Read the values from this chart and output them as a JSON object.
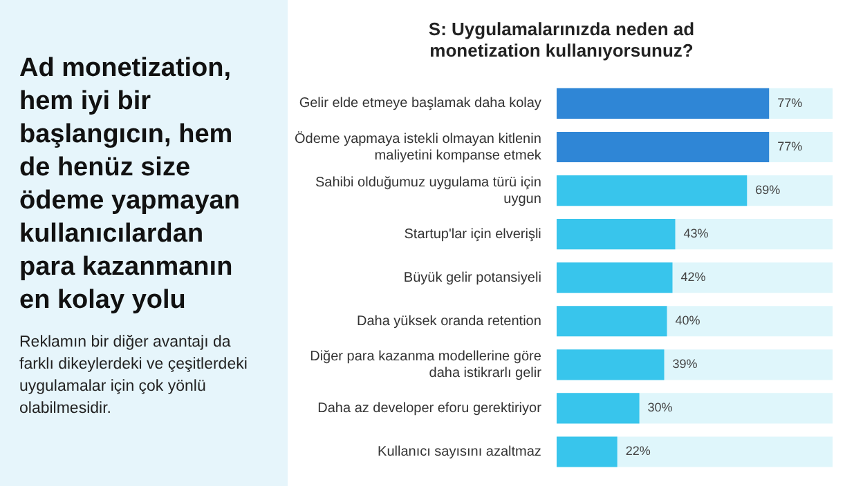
{
  "chart_data": {
    "type": "bar",
    "orientation": "horizontal",
    "title": "S: Uygulamalarınızda neden ad monetization kullanıyorsunuz?",
    "categories": [
      "Gelir elde etmeye başlamak daha kolay",
      "Ödeme yapmaya istekli olmayan kitlenin maliyetini kompanse etmek",
      "Sahibi olduğumuz uygulama türü için uygun",
      "Startup'lar için elverişli",
      "Büyük gelir potansiyeli",
      "Daha yüksek oranda retention",
      "Diğer para kazanma modellerine göre daha istikrarlı gelir",
      "Daha az developer eforu gerektiriyor",
      "Kullanıcı sayısını azaltmaz"
    ],
    "values": [
      77,
      77,
      69,
      43,
      42,
      40,
      39,
      30,
      22
    ],
    "colors": [
      "#2f86d6",
      "#2f86d6",
      "#38c5ec",
      "#38c5ec",
      "#38c5ec",
      "#38c5ec",
      "#38c5ec",
      "#38c5ec",
      "#38c5ec"
    ],
    "value_labels": [
      "77%",
      "77%",
      "69%",
      "43%",
      "42%",
      "40%",
      "39%",
      "30%",
      "22%"
    ],
    "xlim": [
      0,
      100
    ],
    "tick_labels": "y",
    "annotations": [
      "Ad monetization, hem iyi bir başlangıcın, hem de henüz size ödeme yapmayan kullanıcılardan para kazanmanın en kolay yolu",
      "Reklamın bir diğer avantajı da farklı dikeylerdeki ve çeşitlerdeki uygulamalar için çok yönlü olabilmesidir."
    ]
  }
}
